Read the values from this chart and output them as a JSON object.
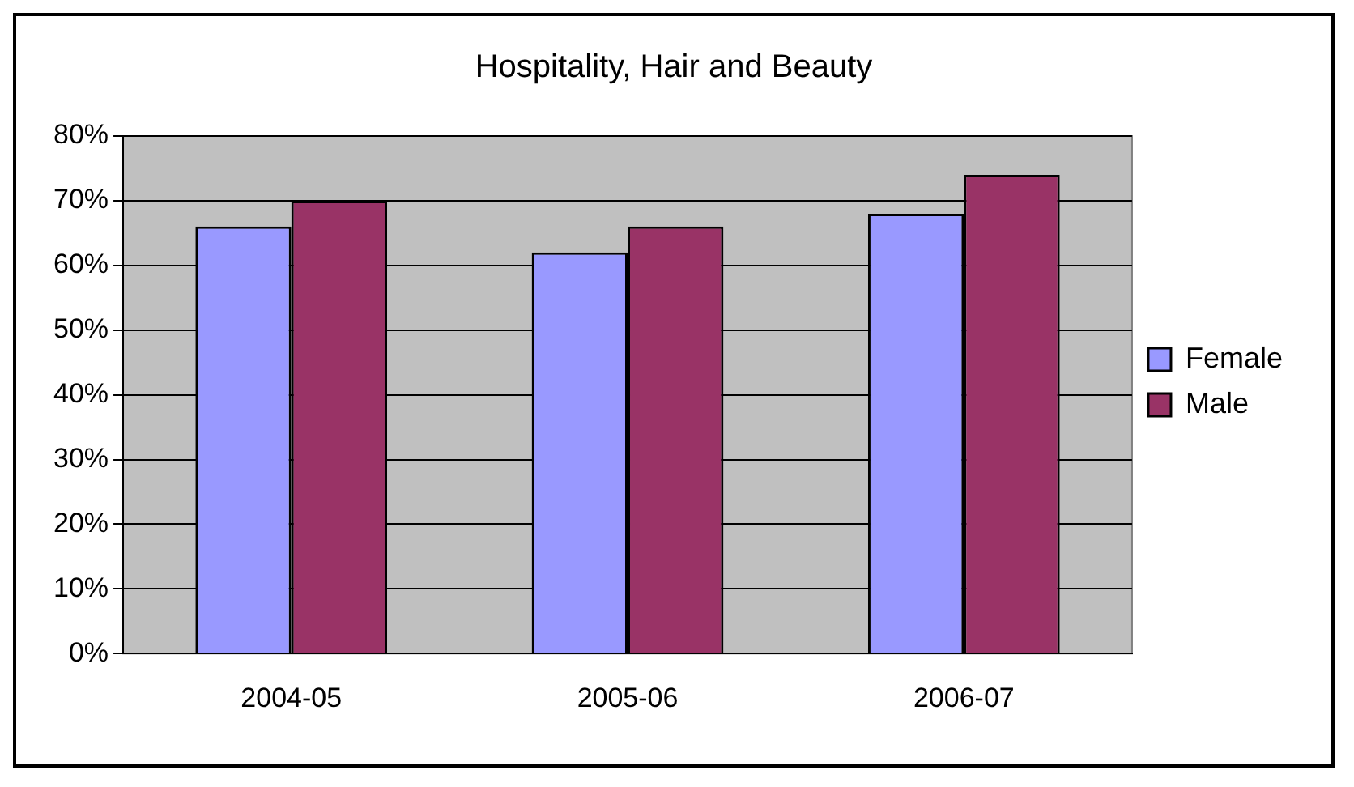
{
  "chart_data": {
    "type": "bar",
    "title": "Hospitality, Hair and Beauty",
    "categories": [
      "2004-05",
      "2005-06",
      "2006-07"
    ],
    "series": [
      {
        "name": "Female",
        "color": "#9999ff",
        "values": [
          66,
          62,
          68
        ]
      },
      {
        "name": "Male",
        "color": "#993366",
        "values": [
          70,
          66,
          74
        ]
      }
    ],
    "ylim": [
      0,
      80
    ],
    "yticks": [
      {
        "value": 0,
        "label": "0%"
      },
      {
        "value": 10,
        "label": "10%"
      },
      {
        "value": 20,
        "label": "20%"
      },
      {
        "value": 30,
        "label": "30%"
      },
      {
        "value": 40,
        "label": "40%"
      },
      {
        "value": 50,
        "label": "50%"
      },
      {
        "value": 60,
        "label": "60%"
      },
      {
        "value": 70,
        "label": "70%"
      },
      {
        "value": 80,
        "label": "80%"
      }
    ],
    "grid": "y",
    "legend": "right"
  }
}
